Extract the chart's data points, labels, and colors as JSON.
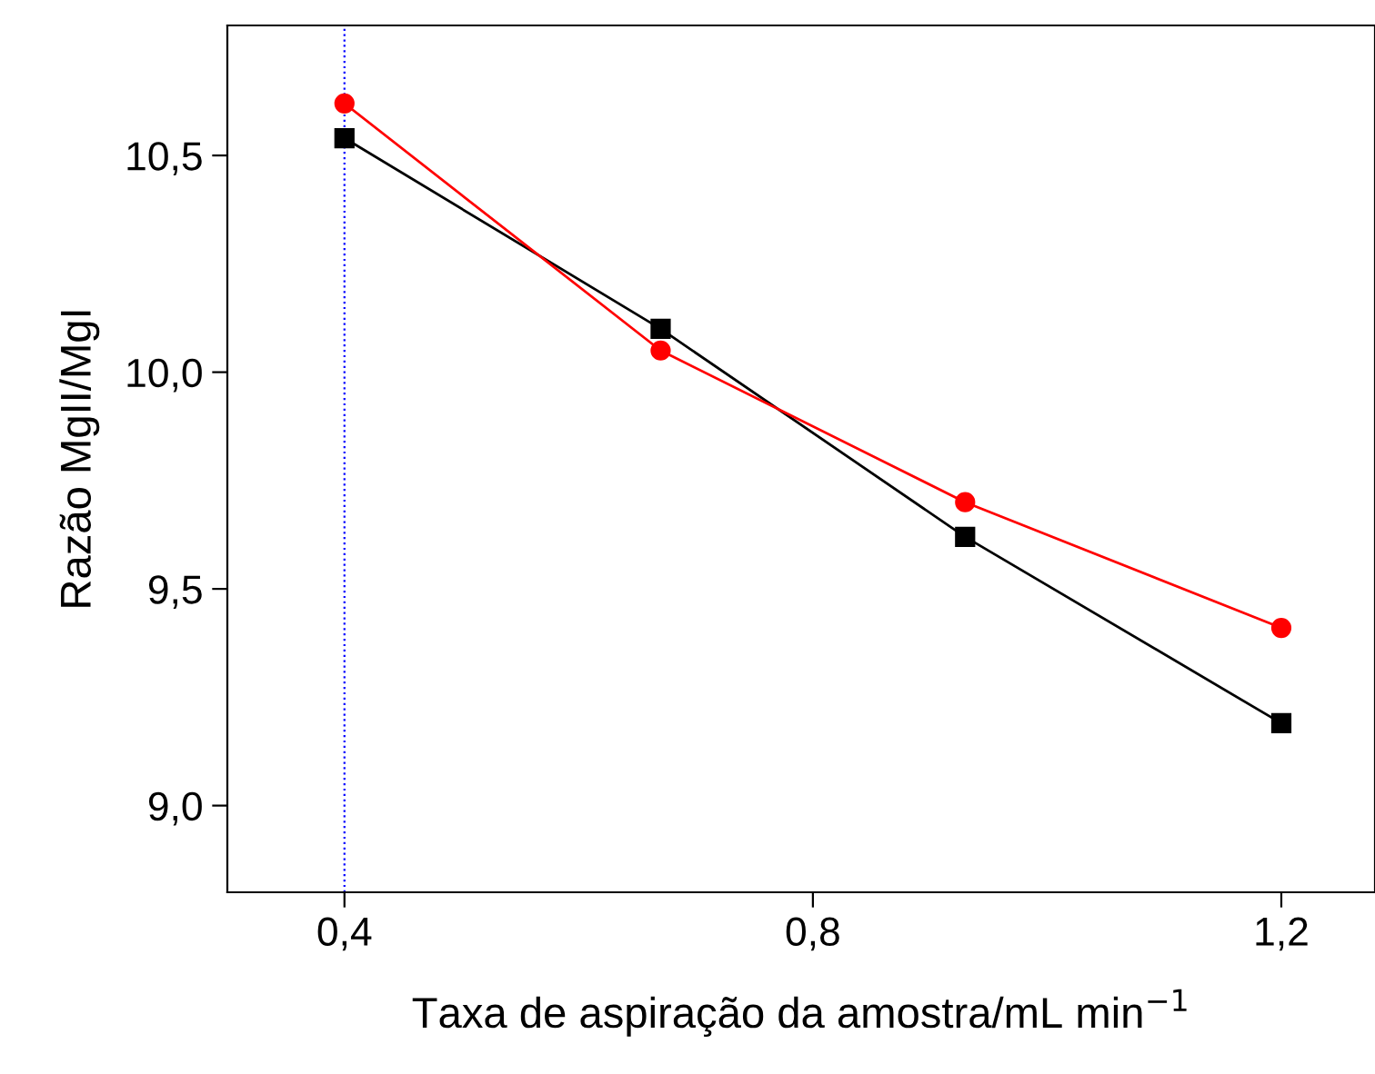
{
  "chart_data": {
    "type": "line",
    "xlabel": "Taxa de aspiração da amostra/mL min$^{−1}$",
    "ylabel": "Razão MgII/MgI",
    "x": [
      0.4,
      0.67,
      0.93,
      1.2
    ],
    "series": [
      {
        "color": "#000000",
        "marker": "square",
        "values": [
          10.54,
          10.1,
          9.62,
          9.19
        ]
      },
      {
        "color": "#ff0000",
        "marker": "circle",
        "values": [
          10.62,
          10.05,
          9.7,
          9.41
        ]
      }
    ],
    "xlim": [
      0.3,
      1.28
    ],
    "ylim": [
      8.8,
      10.8
    ],
    "xticks": [
      {
        "value": 0.4,
        "label": "0,4"
      },
      {
        "value": 0.8,
        "label": "0,8"
      },
      {
        "value": 1.2,
        "label": "1,2"
      }
    ],
    "yticks": [
      {
        "value": 9.0,
        "label": "9,0"
      },
      {
        "value": 9.5,
        "label": "9,5"
      },
      {
        "value": 10.0,
        "label": "10,0"
      },
      {
        "value": 10.5,
        "label": "10,5"
      }
    ],
    "ref_lines": [
      {
        "axis": "x",
        "value": 0.4,
        "color": "#0000ff",
        "line_style": "dotted"
      }
    ],
    "grid": false,
    "legend": false
  }
}
